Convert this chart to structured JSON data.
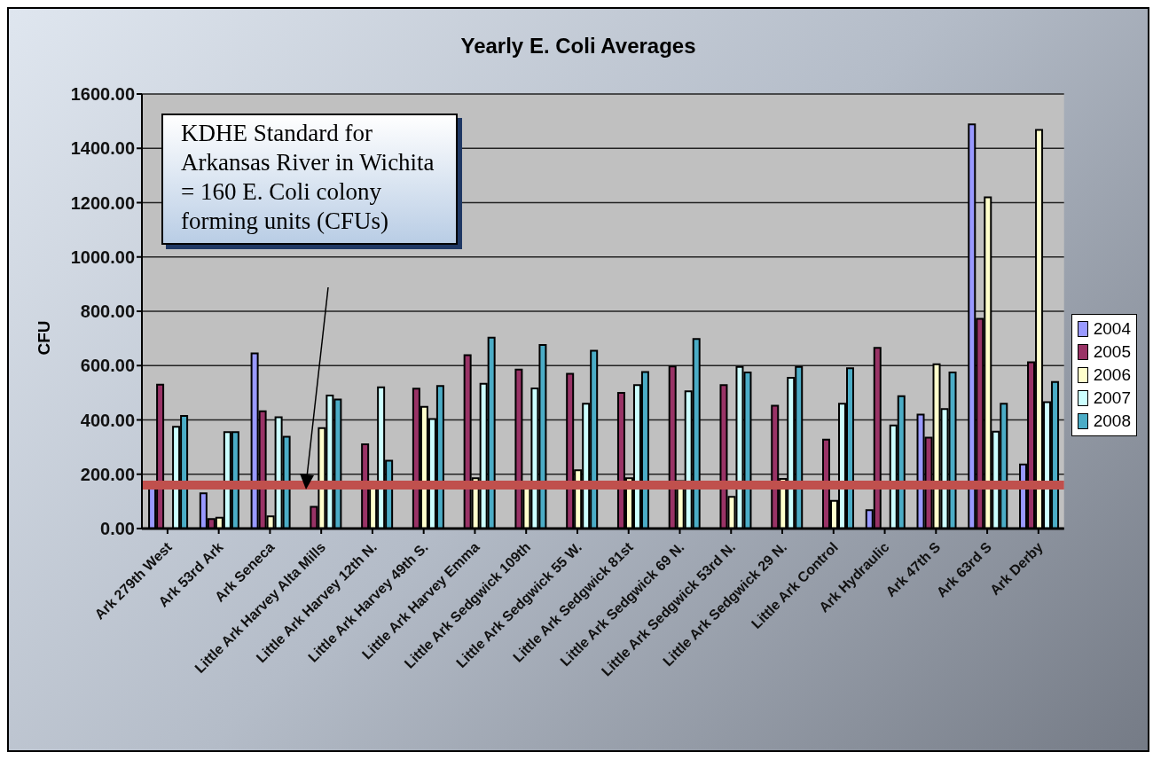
{
  "chart_data": {
    "type": "bar",
    "title": "Yearly E. Coli Averages",
    "ylabel": "CFU",
    "categories": [
      "Ark 279th West",
      "Ark 53rd Ark",
      "Ark Seneca",
      "Little Ark Harvey Alta Mills",
      "Little Ark Harvey 12th N.",
      "Little Ark Harvey 49th S.",
      "Little Ark Harvey Emma",
      "Little Ark Sedgwick 109th",
      "Little Ark Sedgwick 55 W.",
      "Little Ark Sedgwick 81st",
      "Little Ark Sedgwick 69 N.",
      "Little Ark Sedgwick 53rd N.",
      "Little Ark Sedgwick 29 N.",
      "Little Ark Control",
      "Ark Hydraulic",
      "Ark 47th S",
      "Ark 63rd S",
      "Ark Derby"
    ],
    "series": [
      {
        "name": "2004",
        "color": "#9999ff",
        "values": [
          150,
          130,
          645,
          null,
          null,
          null,
          null,
          null,
          null,
          null,
          null,
          null,
          null,
          null,
          68,
          420,
          1488,
          236
        ]
      },
      {
        "name": "2005",
        "color": "#993366",
        "values": [
          530,
          35,
          432,
          80,
          310,
          515,
          638,
          585,
          570,
          500,
          597,
          528,
          452,
          327,
          665,
          335,
          772,
          612
        ]
      },
      {
        "name": "2006",
        "color": "#ffffcc",
        "values": [
          null,
          40,
          45,
          370,
          155,
          448,
          185,
          150,
          215,
          185,
          175,
          117,
          183,
          102,
          null,
          605,
          1220,
          1468
        ]
      },
      {
        "name": "2007",
        "color": "#ccffff",
        "values": [
          375,
          355,
          410,
          490,
          520,
          403,
          533,
          516,
          460,
          528,
          505,
          595,
          555,
          460,
          380,
          440,
          357,
          465
        ]
      },
      {
        "name": "2008",
        "color": "#4bacc6",
        "values": [
          415,
          355,
          338,
          475,
          250,
          525,
          703,
          676,
          655,
          576,
          698,
          575,
          595,
          590,
          487,
          575,
          460,
          540
        ]
      }
    ],
    "ylim": [
      0,
      1600
    ],
    "yticks": [
      {
        "value": 0,
        "label": "0.00"
      },
      {
        "value": 200,
        "label": "200.00"
      },
      {
        "value": 400,
        "label": "400.00"
      },
      {
        "value": 600,
        "label": "600.00"
      },
      {
        "value": 800,
        "label": "800.00"
      },
      {
        "value": 1000,
        "label": "1000.00"
      },
      {
        "value": 1200,
        "label": "1200.00"
      },
      {
        "value": 1400,
        "label": "1400.00"
      },
      {
        "value": 1600,
        "label": "1600.00"
      }
    ],
    "grid": "y",
    "legend": "right",
    "ref_lines": [
      {
        "axis": "y",
        "value": 160,
        "color": "#c0504d"
      }
    ],
    "annotations": [
      "KDHE Standard for Arkansas River in Wichita = 160 E. Coli colony forming units (CFUs)"
    ]
  }
}
